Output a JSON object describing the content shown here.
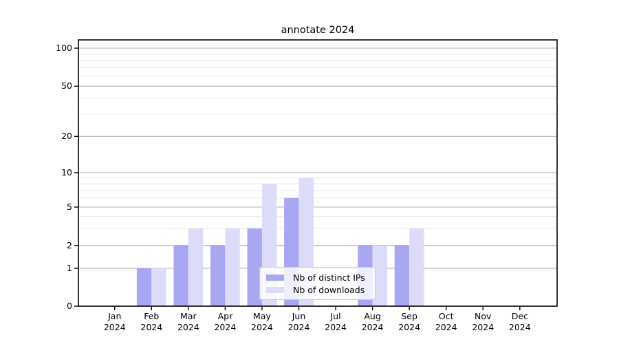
{
  "chart_data": {
    "type": "bar",
    "title": "annotate 2024",
    "categories": [
      "Jan",
      "Feb",
      "Mar",
      "Apr",
      "May",
      "Jun",
      "Jul",
      "Aug",
      "Sep",
      "Oct",
      "Nov",
      "Dec"
    ],
    "x_year": "2024",
    "series": [
      {
        "name": "Nb of distinct IPs",
        "color": "#a8a8f2",
        "values": [
          0,
          1,
          2,
          2,
          3,
          6,
          0,
          2,
          2,
          0,
          0,
          0
        ]
      },
      {
        "name": "Nb of downloads",
        "color": "#dcdcf9",
        "values": [
          0,
          1,
          3,
          3,
          8,
          9,
          0,
          2,
          3,
          0,
          0,
          0
        ]
      }
    ],
    "yticks": [
      0,
      1,
      2,
      5,
      10,
      20,
      50,
      100
    ],
    "y_minor_gridlines": [
      3,
      4,
      6,
      7,
      8,
      9,
      30,
      40,
      60,
      70,
      80,
      90
    ],
    "yscale": "log-like with linear 0-to-1 segment",
    "ylim": [
      0,
      115
    ],
    "xlabel": "",
    "ylabel": "",
    "grid": true,
    "legend": {
      "position": "lower-center-inside",
      "labels": [
        "Nb of distinct IPs",
        "Nb of downloads"
      ]
    }
  },
  "colors": {
    "background": "#ffffff",
    "bar_distinct_ips": "#a8a8f2",
    "bar_downloads": "#dcdcf9",
    "grid_major": "#b0b0b0",
    "grid_minor": "#e8e8e8",
    "axes": "#000000",
    "text": "#000000",
    "legend_border": "#cccccc"
  }
}
